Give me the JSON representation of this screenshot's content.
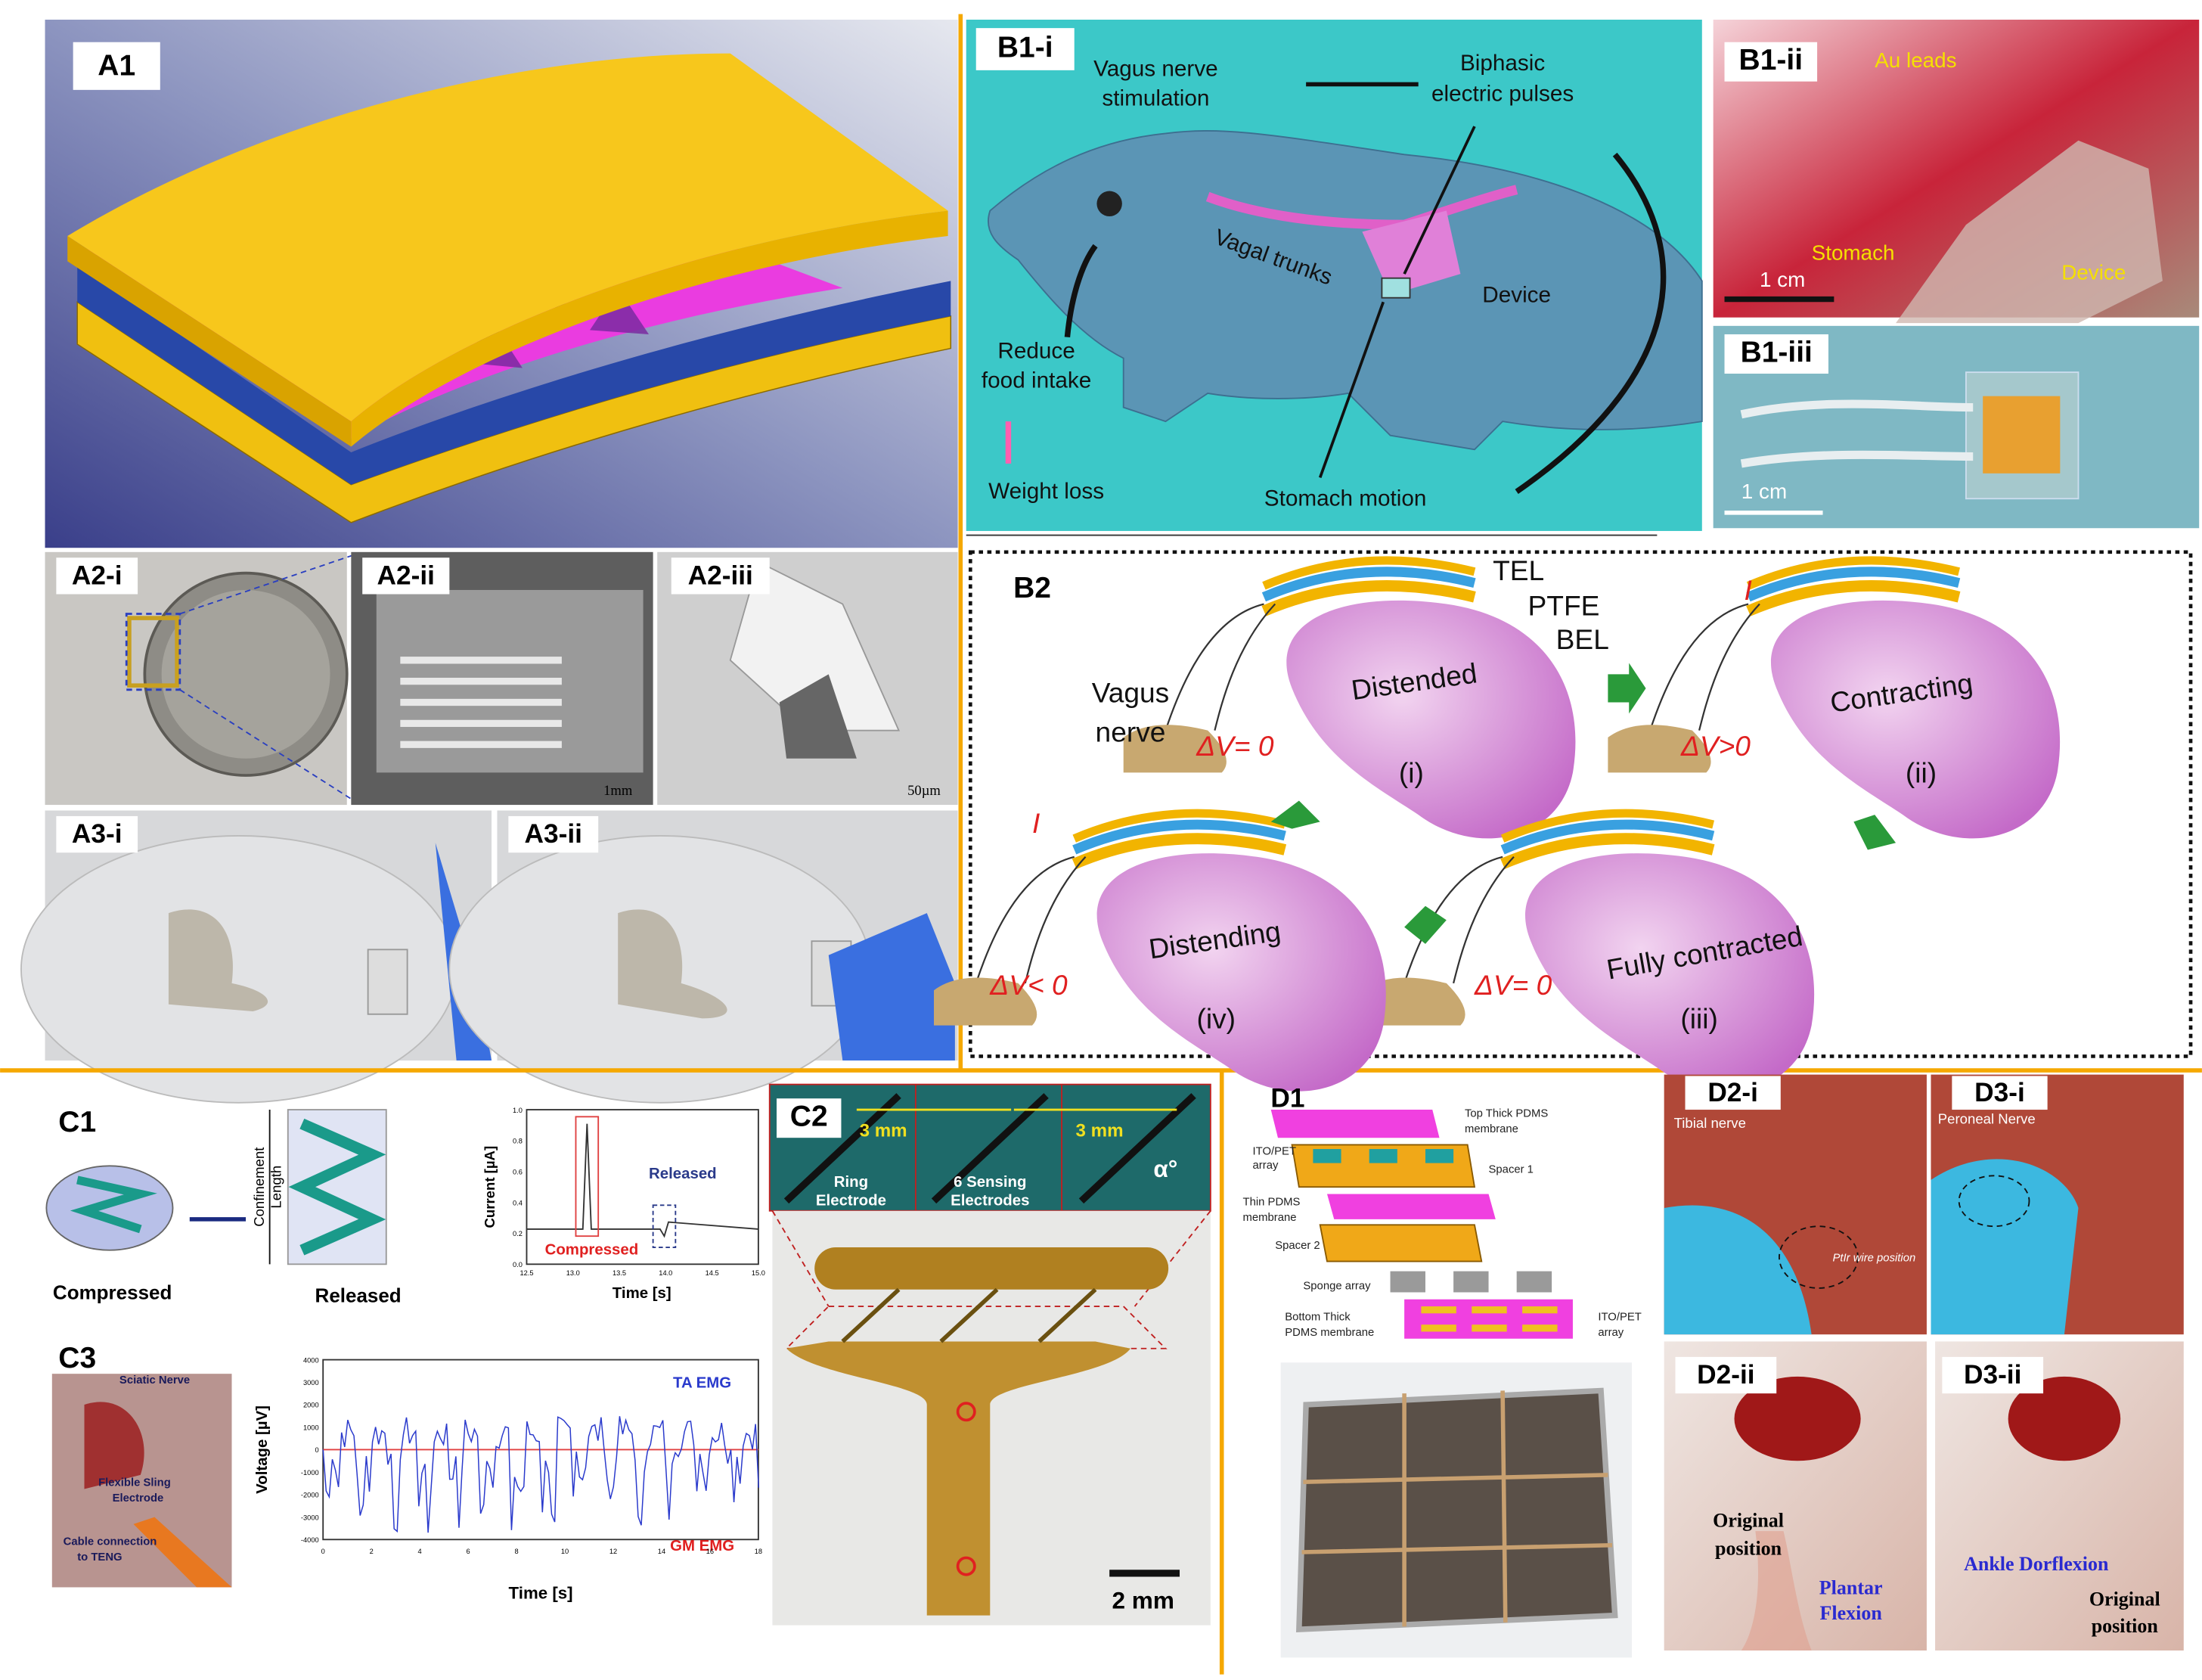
{
  "panels": {
    "A1": {
      "label": "A1"
    },
    "A2_i": {
      "label": "A2-i"
    },
    "A2_ii": {
      "label": "A2-ii",
      "scale_bar": "1mm"
    },
    "A2_iii": {
      "label": "A2-iii",
      "scale_bar": "50µm"
    },
    "A3_i": {
      "label": "A3-i"
    },
    "A3_ii": {
      "label": "A3-ii"
    },
    "B1_i": {
      "label": "B1-i",
      "stimulation": [
        "Vagus nerve",
        "stimulation"
      ],
      "pulses": [
        "Biphasic",
        "electric pulses"
      ],
      "trunks": "Vagal trunks",
      "device": "Device",
      "reduce": [
        "Reduce",
        "food intake"
      ],
      "weight_loss": "Weight loss",
      "stomach_motion": "Stomach motion"
    },
    "B1_ii": {
      "label": "B1-ii",
      "leads": "Au leads",
      "stomach": "Stomach",
      "device": "Device",
      "scale_bar": "1 cm"
    },
    "B1_iii": {
      "label": "B1-iii",
      "scale_bar": "1 cm"
    },
    "B2": {
      "label": "B2",
      "layers": [
        "TEL",
        "PTFE",
        "BEL"
      ],
      "nerve": [
        "Vagus",
        "nerve"
      ],
      "states": [
        "Distended",
        "Contracting",
        "Fully contracted",
        "Distending"
      ],
      "steps": [
        "(i)",
        "(ii)",
        "(iii)",
        "(iv)"
      ],
      "voltages": [
        "ΔV= 0",
        "ΔV>0",
        "ΔV= 0",
        "ΔV< 0"
      ],
      "current": "I"
    },
    "C1": {
      "label": "C1",
      "compressed": "Compressed",
      "released": "Released",
      "confinement": [
        "Confinement",
        "Length"
      ],
      "plot": {
        "peak_compressed": "Compressed",
        "peak_released": "Released",
        "ylabel": "Current [µA]",
        "xlabel": "Time [s]",
        "xticks": [
          "12.5",
          "13.0",
          "13.5",
          "14.0",
          "14.5",
          "15.0"
        ],
        "yticks": [
          "0.0",
          "0.2",
          "0.4",
          "0.6",
          "0.8",
          "1.0"
        ]
      }
    },
    "C2": {
      "label": "C2",
      "spacing": [
        "3 mm",
        "3 mm"
      ],
      "ring": [
        "Ring",
        "Electrode"
      ],
      "sensing": [
        "6 Sensing",
        "Electrodes"
      ],
      "angle": "α°",
      "scale_bar": "2 mm"
    },
    "C3": {
      "label": "C3",
      "photo": {
        "nerve": "Sciatic Nerve",
        "electrode": [
          "Flexible Sling",
          "Electrode"
        ],
        "cable": [
          "Cable connection",
          "to TENG"
        ]
      },
      "plot": {
        "ta": "TA EMG",
        "gm": "GM EMG",
        "ylabel": "Voltage [µV]",
        "xlabel": "Time [s]",
        "yticks": [
          "4000",
          "3000",
          "2000",
          "1000",
          "0",
          "-1000",
          "-2000",
          "-3000",
          "-4000"
        ],
        "xticks": [
          "0",
          "2",
          "4",
          "6",
          "8",
          "10",
          "12",
          "14",
          "16",
          "18"
        ]
      }
    },
    "D1": {
      "label": "D1",
      "top": [
        "Top Thick PDMS",
        "membrane"
      ],
      "ito_top": [
        "ITO/PET",
        "array"
      ],
      "spacer1": "Spacer 1",
      "thin": [
        "Thin PDMS",
        "membrane"
      ],
      "spacer2": "Spacer 2",
      "sponge": "Sponge array",
      "bottom": [
        "Bottom Thick",
        "PDMS membrane"
      ],
      "ito_bottom": [
        "ITO/PET",
        "array"
      ]
    },
    "D2_i": {
      "label": "D2-i",
      "nerve": "Tibial nerve",
      "wire": "PtIr wire position"
    },
    "D3_i": {
      "label": "D3-i",
      "nerve": "Peroneal Nerve"
    },
    "D2_ii": {
      "label": "D2-ii",
      "original": [
        "Original",
        "position"
      ],
      "flexion": [
        "Plantar",
        "Flexion"
      ]
    },
    "D3_ii": {
      "label": "D3-ii",
      "dorsiflexion": "Ankle Dorflexion",
      "original": [
        "Original",
        "position"
      ]
    }
  }
}
